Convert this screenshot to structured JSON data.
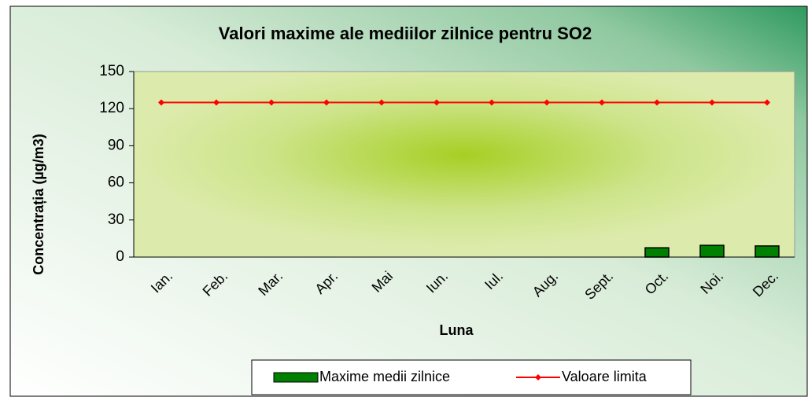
{
  "chart_data": {
    "type": "bar",
    "title": "Valori maxime ale mediilor zilnice pentru SO2",
    "x_label": "Luna",
    "y_label": "Concentrația (µg/m3)",
    "categories": [
      "Ian.",
      "Feb.",
      "Mar.",
      "Apr.",
      "Mai",
      "Iun.",
      "Iul.",
      "Aug.",
      "Sept.",
      "Oct.",
      "Noi.",
      "Dec."
    ],
    "series": [
      {
        "name": "Maxime medii zilnice",
        "type": "bar",
        "color": "#008000",
        "values": [
          null,
          null,
          null,
          null,
          null,
          null,
          null,
          null,
          null,
          7.5,
          9.5,
          9
        ]
      },
      {
        "name": "Valoare limita",
        "type": "line",
        "color": "#ff0000",
        "values": [
          125,
          125,
          125,
          125,
          125,
          125,
          125,
          125,
          125,
          125,
          125,
          125
        ]
      }
    ],
    "ylim": [
      0,
      150
    ],
    "yticks": [
      0,
      30,
      60,
      90,
      120,
      150
    ],
    "legend": "bottom"
  }
}
